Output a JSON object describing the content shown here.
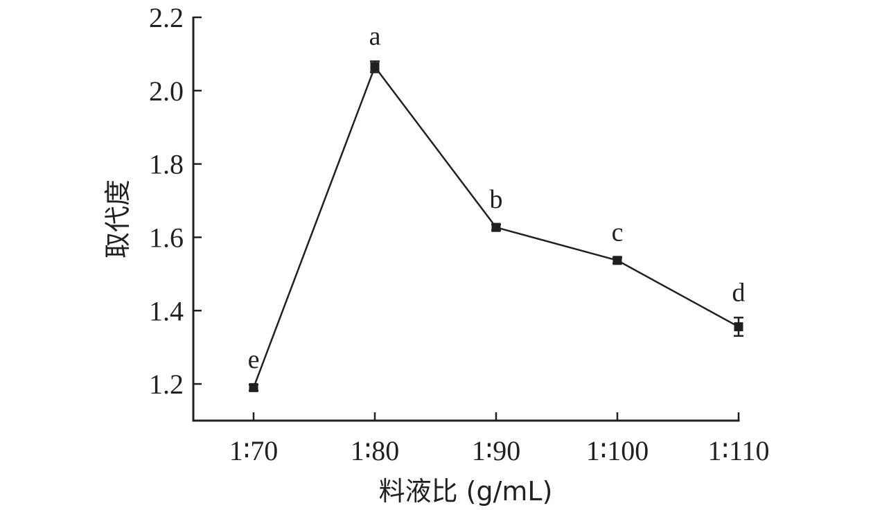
{
  "chart_data": {
    "type": "line",
    "xlabel": "料液比 (g/mL)",
    "ylabel": "取代度",
    "categories": [
      "1∶70",
      "1∶80",
      "1∶90",
      "1∶100",
      "1∶110"
    ],
    "values": [
      1.19,
      2.065,
      1.627,
      1.537,
      1.356
    ],
    "errors": [
      0.008,
      0.015,
      0.008,
      0.008,
      0.025
    ],
    "significance_letters": [
      "e",
      "a",
      "b",
      "c",
      "d"
    ],
    "ylim": [
      1.1,
      2.2
    ],
    "yticks": [
      1.2,
      1.4,
      1.6,
      1.8,
      2.0,
      2.2
    ],
    "ytick_labels": [
      "1.2",
      "1.4",
      "1.6",
      "1.8",
      "2.0",
      "2.2"
    ],
    "grid": false,
    "marker": "square",
    "color": "#231f20"
  }
}
